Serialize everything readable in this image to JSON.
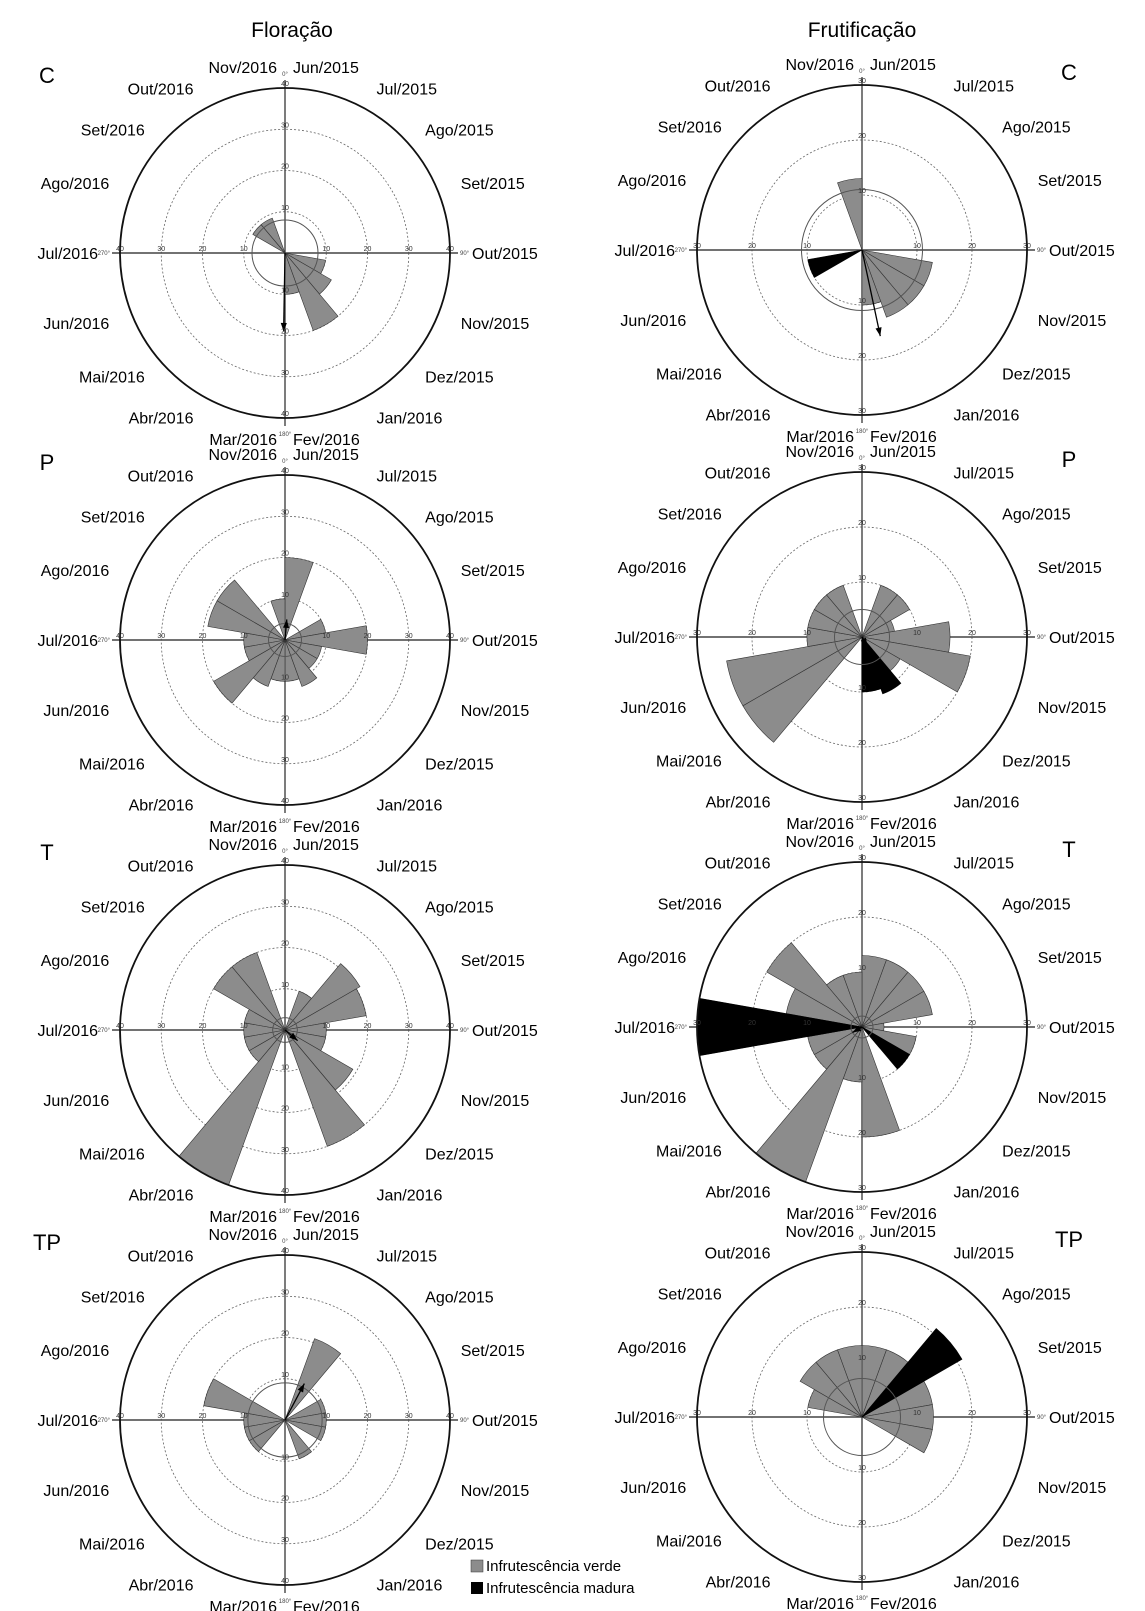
{
  "column_titles": [
    "Floração",
    "Frutificação"
  ],
  "degree_labels": [
    "0°",
    "90°",
    "180°",
    "270°"
  ],
  "months": [
    "Jun/2015",
    "Jul/2015",
    "Ago/2015",
    "Set/2015",
    "Out/2015",
    "Nov/2015",
    "Dez/2015",
    "Jan/2016",
    "Fev/2016",
    "Mar/2016",
    "Abr/2016",
    "Mai/2016",
    "Jun/2016",
    "Jul/2016",
    "Ago/2016",
    "Set/2016",
    "Out/2016",
    "Nov/2016"
  ],
  "legend": {
    "green": "Infrutescência verde",
    "mature": "Infrutescência madura"
  },
  "colors": {
    "green": "#8c8c8c",
    "mature": "#000000"
  },
  "chart_data": [
    {
      "type": "rose",
      "column": "Floração",
      "panel": "C",
      "rmax": 40,
      "ticks": [
        10,
        20,
        30,
        40
      ],
      "green": [
        0,
        0,
        0,
        0,
        0,
        10,
        13,
        20,
        10,
        0,
        0,
        0,
        0,
        0,
        0,
        9,
        9,
        0
      ],
      "mature": [],
      "mean_vector": {
        "angle_deg": 181,
        "length": 19
      },
      "circle_r": 8
    },
    {
      "type": "rose",
      "column": "Frutificação",
      "panel": "C",
      "rmax": 30,
      "ticks": [
        10,
        20,
        30
      ],
      "green": [
        0,
        0,
        0,
        0,
        0,
        13,
        13,
        13,
        10,
        0,
        0,
        0,
        0,
        0,
        0,
        0,
        0,
        13
      ],
      "mature": [
        0,
        0,
        0,
        0,
        0,
        0,
        0,
        0,
        0,
        0,
        0,
        0,
        10,
        0,
        0,
        0,
        0,
        0
      ],
      "mean_vector": {
        "angle_deg": 168,
        "length": 16
      },
      "circle_r": 11
    },
    {
      "type": "rose",
      "column": "Floração",
      "panel": "P",
      "rmax": 40,
      "ticks": [
        10,
        20,
        30,
        40
      ],
      "green": [
        20,
        0,
        0,
        10,
        20,
        9,
        9,
        12,
        10,
        10,
        12,
        20,
        10,
        10,
        19,
        19,
        0,
        10
      ],
      "mature": [],
      "mean_vector": {
        "angle_deg": 5,
        "length": 5
      },
      "circle_r": 4
    },
    {
      "type": "rose",
      "column": "Frutificação",
      "panel": "P",
      "rmax": 30,
      "ticks": [
        10,
        20,
        30
      ],
      "green": [
        0,
        10,
        10,
        6,
        16,
        20,
        8,
        0,
        0,
        0,
        0,
        25,
        25,
        10,
        10,
        10,
        10,
        0
      ],
      "mature": [
        0,
        0,
        0,
        0,
        0,
        0,
        0,
        11,
        10,
        0,
        0,
        0,
        0,
        0,
        0,
        0,
        0,
        0
      ],
      "mean_vector": {
        "angle_deg": 150,
        "length": 2
      },
      "circle_r": 5
    },
    {
      "type": "rose",
      "column": "Floração",
      "panel": "T",
      "rmax": 40,
      "ticks": [
        10,
        20,
        30,
        40
      ],
      "green": [
        0,
        10,
        21,
        20,
        10,
        10,
        19,
        30,
        0,
        0,
        40,
        10,
        10,
        10,
        10,
        20,
        20,
        0
      ],
      "mature": [],
      "mean_vector": {
        "angle_deg": 130,
        "length": 4
      },
      "circle_r": 3
    },
    {
      "type": "rose",
      "column": "Frutificação",
      "panel": "T",
      "rmax": 30,
      "ticks": [
        10,
        20,
        30
      ],
      "green": [
        13,
        13,
        13,
        13,
        4,
        10,
        5,
        0,
        20,
        10,
        30,
        10,
        10,
        10,
        14,
        20,
        10,
        10
      ],
      "mature": [
        0,
        0,
        0,
        0,
        0,
        0,
        10,
        0,
        0,
        0,
        0,
        0,
        0,
        30,
        0,
        0,
        0,
        0
      ],
      "mean_vector": {
        "angle_deg": 240,
        "length": 2
      },
      "circle_r": 2
    },
    {
      "type": "rose",
      "column": "Floração",
      "panel": "TP",
      "rmax": 40,
      "ticks": [
        10,
        20,
        30,
        40
      ],
      "green": [
        0,
        21,
        0,
        10,
        10,
        10,
        0,
        10,
        0,
        0,
        0,
        10,
        10,
        10,
        20,
        0,
        0,
        0
      ],
      "mature": [],
      "mean_vector": {
        "angle_deg": 28,
        "length": 10
      },
      "circle_r": 9
    },
    {
      "type": "rose",
      "column": "Frutificação",
      "panel": "TP",
      "rmax": 30,
      "ticks": [
        10,
        20,
        30
      ],
      "green": [
        13,
        13,
        13,
        13,
        13,
        13,
        0,
        0,
        0,
        0,
        0,
        0,
        0,
        0,
        10,
        13,
        13,
        13
      ],
      "mature": [
        0,
        0,
        21,
        0,
        0,
        0,
        0,
        0,
        0,
        0,
        0,
        0,
        0,
        0,
        0,
        0,
        0,
        0
      ],
      "mean_vector": null,
      "circle_r": 7
    }
  ]
}
